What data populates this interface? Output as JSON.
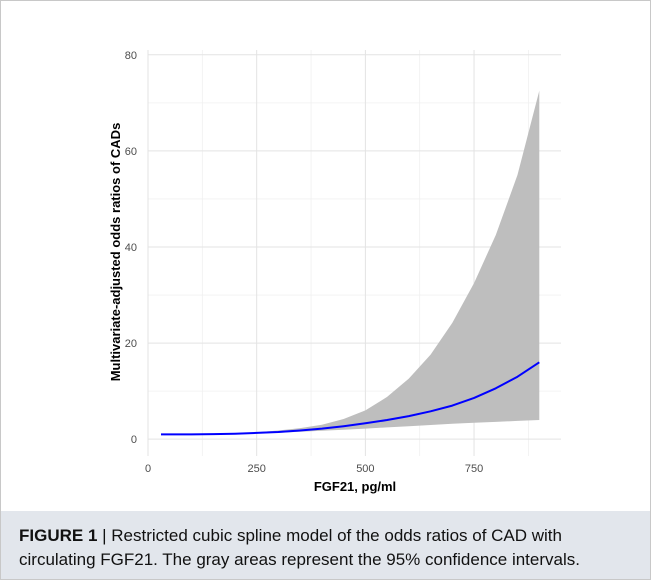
{
  "chart_data": {
    "type": "line",
    "title": "",
    "xlabel": "FGF21, pg/ml",
    "ylabel": "Multivariate-adjusted odds ratios of CADs",
    "xlim": [
      0,
      950
    ],
    "ylim": [
      -3.5,
      81
    ],
    "xticks": [
      0,
      250,
      500,
      750
    ],
    "yticks": [
      0,
      20,
      40,
      60,
      80
    ],
    "grid": true,
    "series": [
      {
        "kind": "line",
        "color": "#0000ff",
        "x": [
          30,
          100,
          150,
          200,
          250,
          300,
          350,
          400,
          450,
          500,
          550,
          600,
          650,
          700,
          750,
          800,
          850,
          900
        ],
        "y": [
          1.0,
          1.0,
          1.05,
          1.15,
          1.3,
          1.5,
          1.8,
          2.2,
          2.7,
          3.3,
          4.0,
          4.8,
          5.8,
          7.0,
          8.6,
          10.6,
          13.0,
          16.0
        ]
      },
      {
        "kind": "band",
        "color": "#bebebe",
        "x": [
          30,
          100,
          150,
          200,
          250,
          300,
          350,
          400,
          450,
          500,
          550,
          600,
          650,
          700,
          750,
          800,
          850,
          900
        ],
        "lower": [
          1.0,
          1.0,
          1.05,
          1.1,
          1.2,
          1.35,
          1.55,
          1.75,
          1.95,
          2.2,
          2.45,
          2.7,
          2.95,
          3.2,
          3.4,
          3.6,
          3.8,
          4.0
        ],
        "upper": [
          1.0,
          1.0,
          1.1,
          1.25,
          1.45,
          1.8,
          2.3,
          3.0,
          4.2,
          6.0,
          8.8,
          12.6,
          17.6,
          24.2,
          32.5,
          42.5,
          55.0,
          72.5
        ]
      }
    ]
  },
  "caption": {
    "label": "FIGURE 1",
    "separator": " | ",
    "text": "Restricted cubic spline model of the odds ratios of CAD with circulating FGF21. The gray areas represent the 95% confidence intervals."
  }
}
